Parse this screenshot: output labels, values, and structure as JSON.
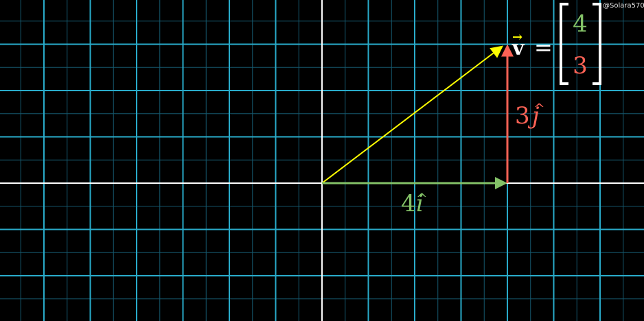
{
  "plane": {
    "x_range": [
      -7,
      7
    ],
    "y_range": [
      -3,
      4
    ]
  },
  "vector": {
    "name": "v",
    "arrow_glyph": "→",
    "components": [
      4,
      3
    ],
    "row_x": "4",
    "row_y": "3"
  },
  "basis_labels": {
    "i_coefficient": "4",
    "i_symbol": "i",
    "j_coefficient": "3",
    "j_symbol": "j",
    "hat": "^",
    "equals": "="
  },
  "colors": {
    "background": "#000000",
    "grid_major": "#29abca",
    "grid_minor": "#15596e",
    "axis": "#ffffff",
    "vector": "#ffff00",
    "i_hat": "#83c167",
    "j_hat": "#fc6255",
    "bracket": "#ffffff"
  },
  "watermark": "@Solara570"
}
